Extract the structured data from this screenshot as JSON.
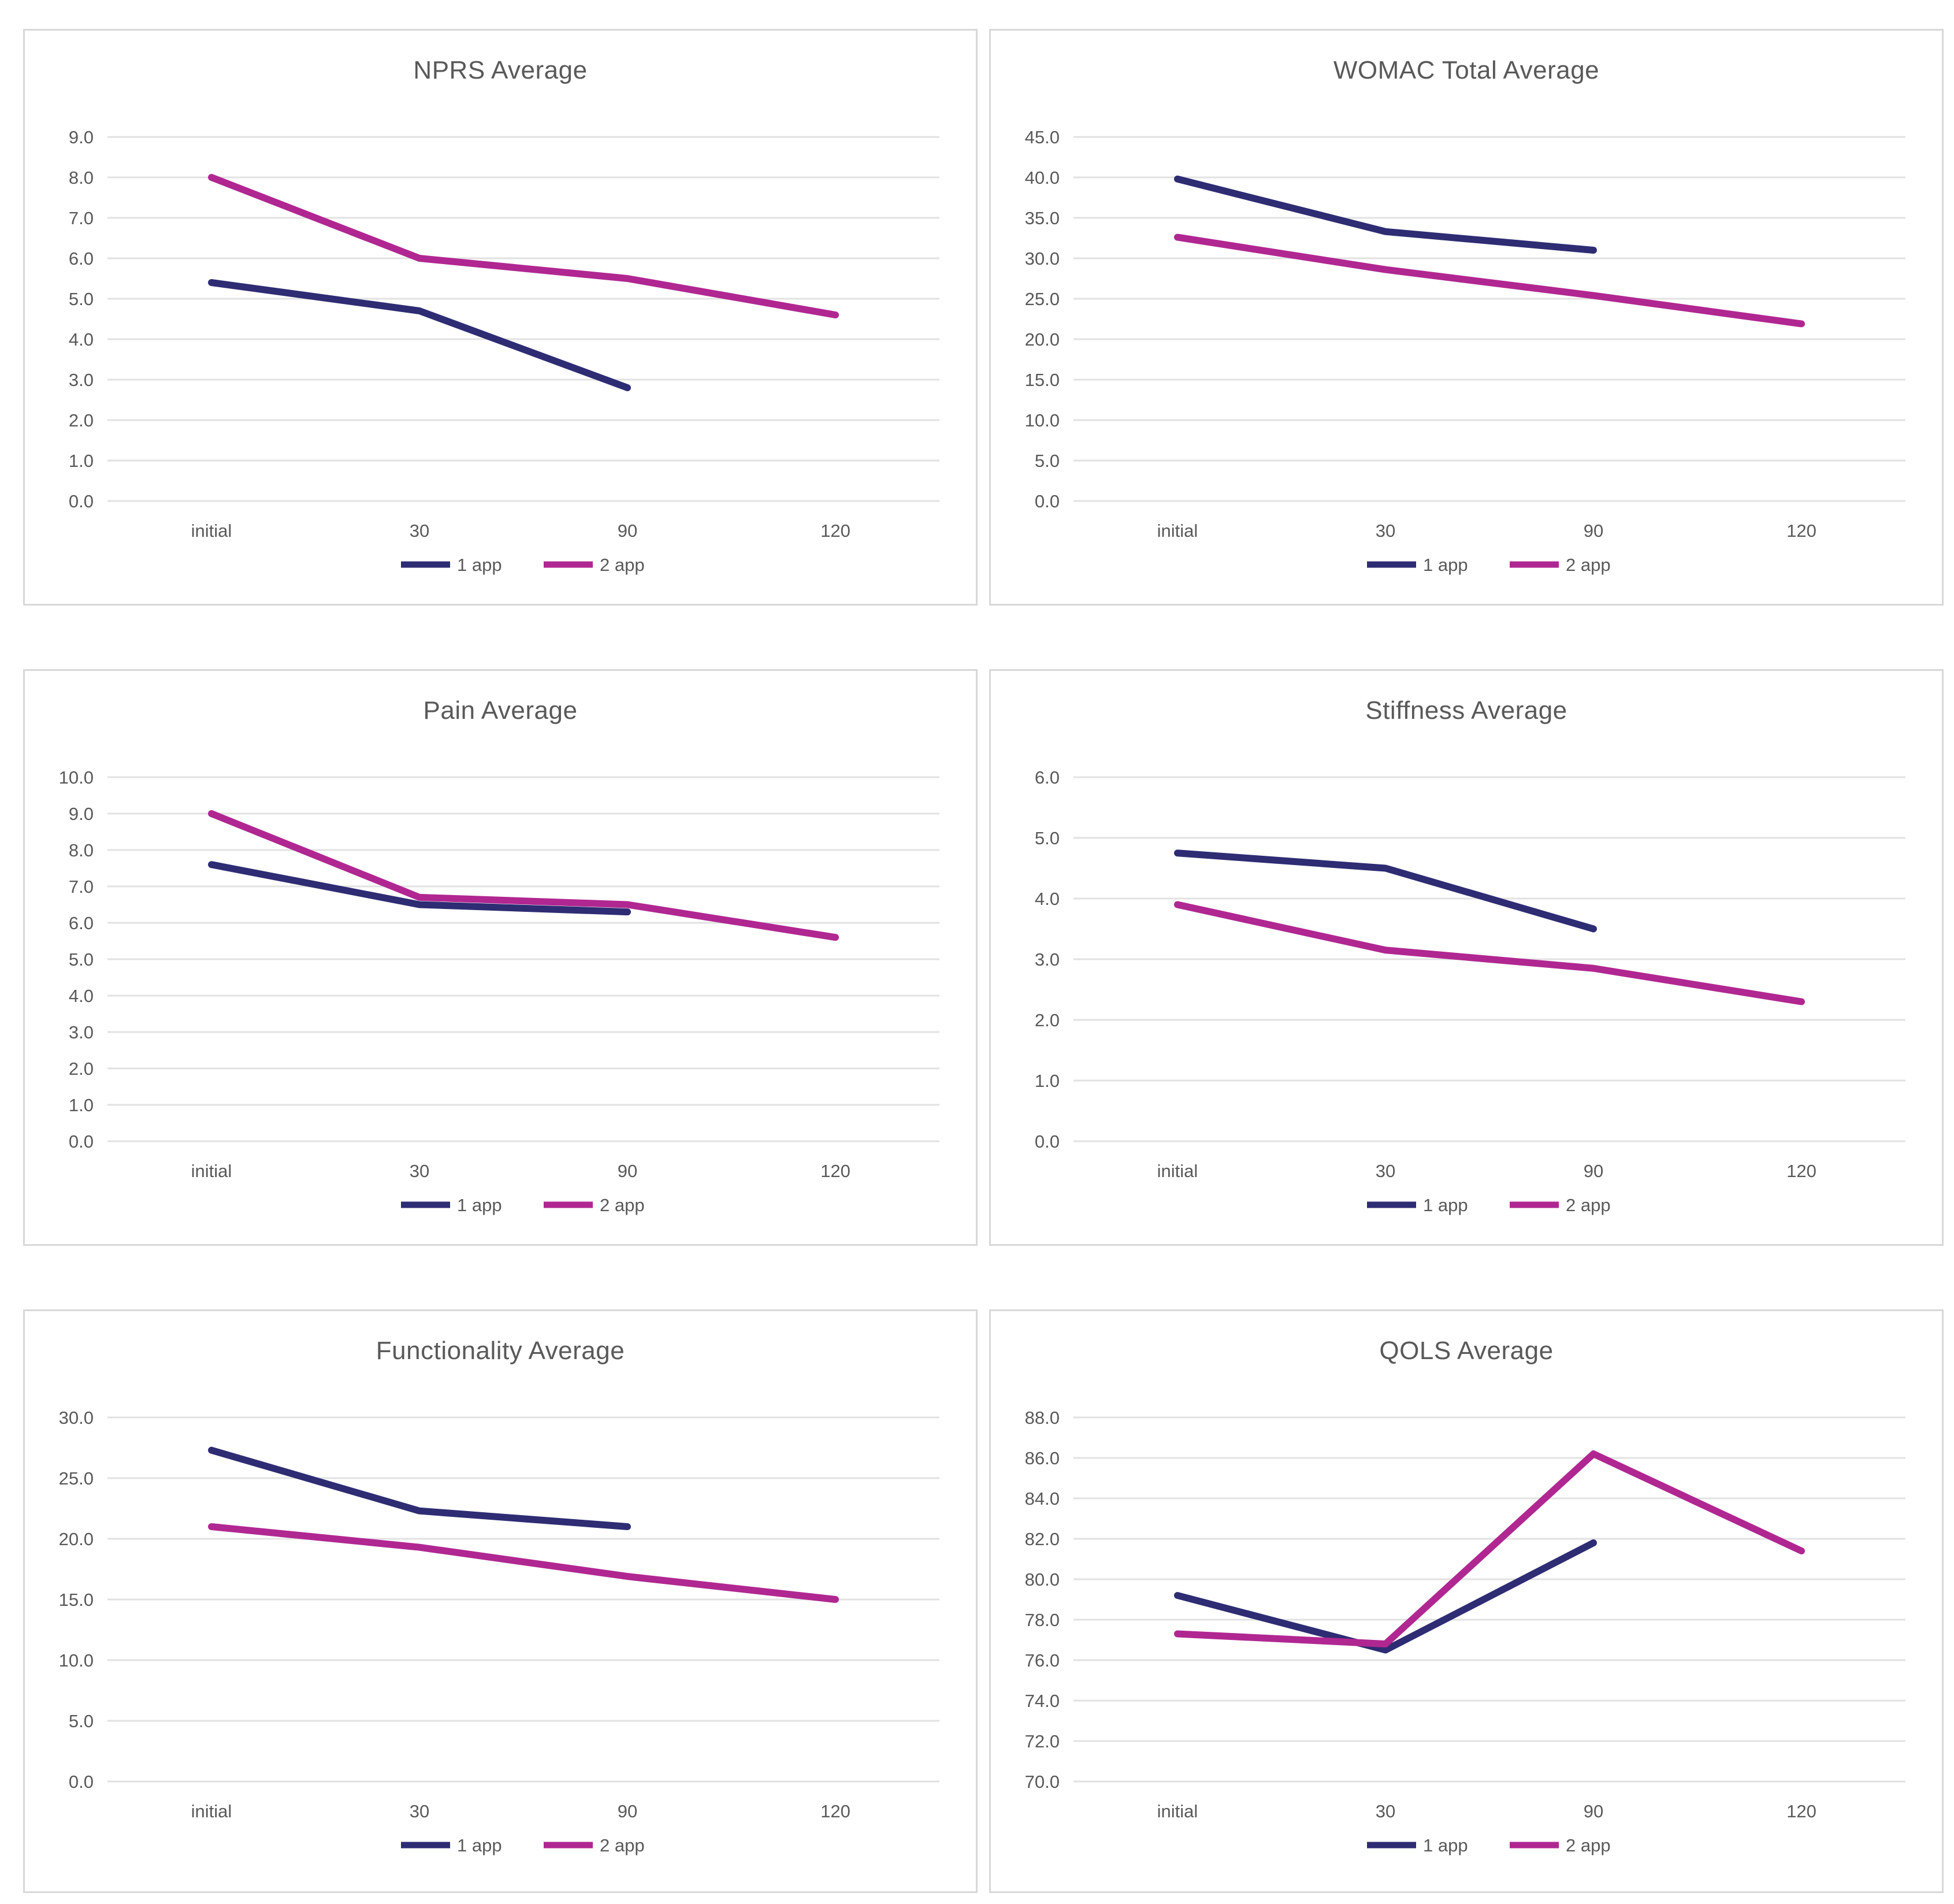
{
  "page": {
    "background": "#ffffff"
  },
  "colors": {
    "series1": "#2E2C73",
    "series2": "#B02791",
    "grid": "#E2E2E2",
    "text": "#595959",
    "panel_border": "#D8D8D8"
  },
  "chart_data": [
    {
      "type": "line",
      "title": "NPRS Average",
      "categories": [
        "initial",
        "30",
        "90",
        "120"
      ],
      "series": [
        {
          "name": "1 app",
          "color": "#2E2C73",
          "values": [
            5.4,
            4.7,
            2.8,
            null
          ]
        },
        {
          "name": "2 app",
          "color": "#B02791",
          "values": [
            8.0,
            6.0,
            5.5,
            4.6
          ]
        }
      ],
      "ylim": [
        0,
        9
      ],
      "ytick_step": 1,
      "ytick_decimals": 1,
      "grid": true,
      "legend_position": "bottom"
    },
    {
      "type": "line",
      "title": "WOMAC Total Average",
      "categories": [
        "initial",
        "30",
        "90",
        "120"
      ],
      "series": [
        {
          "name": "1 app",
          "color": "#2E2C73",
          "values": [
            39.8,
            33.3,
            31.0,
            null
          ]
        },
        {
          "name": "2 app",
          "color": "#B02791",
          "values": [
            32.6,
            28.6,
            25.4,
            21.9
          ]
        }
      ],
      "ylim": [
        0,
        45
      ],
      "ytick_step": 5,
      "ytick_decimals": 1,
      "grid": true,
      "legend_position": "bottom"
    },
    {
      "type": "line",
      "title": "Pain Average",
      "categories": [
        "initial",
        "30",
        "90",
        "120"
      ],
      "series": [
        {
          "name": "1 app",
          "color": "#2E2C73",
          "values": [
            7.6,
            6.5,
            6.3,
            null
          ]
        },
        {
          "name": "2 app",
          "color": "#B02791",
          "values": [
            9.0,
            6.7,
            6.5,
            5.6
          ]
        }
      ],
      "ylim": [
        0,
        10
      ],
      "ytick_step": 1,
      "ytick_decimals": 1,
      "grid": true,
      "legend_position": "bottom"
    },
    {
      "type": "line",
      "title": "Stiffness Average",
      "categories": [
        "initial",
        "30",
        "90",
        "120"
      ],
      "series": [
        {
          "name": "1 app",
          "color": "#2E2C73",
          "values": [
            4.75,
            4.5,
            3.5,
            null
          ]
        },
        {
          "name": "2 app",
          "color": "#B02791",
          "values": [
            3.9,
            3.15,
            2.85,
            2.3
          ]
        }
      ],
      "ylim": [
        0,
        6
      ],
      "ytick_step": 1,
      "ytick_decimals": 1,
      "grid": true,
      "legend_position": "bottom"
    },
    {
      "type": "line",
      "title": "Functionality Average",
      "categories": [
        "initial",
        "30",
        "90",
        "120"
      ],
      "series": [
        {
          "name": "1 app",
          "color": "#2E2C73",
          "values": [
            27.3,
            22.3,
            21.0,
            null
          ]
        },
        {
          "name": "2 app",
          "color": "#B02791",
          "values": [
            21.0,
            19.3,
            16.9,
            15.0
          ]
        }
      ],
      "ylim": [
        0,
        30
      ],
      "ytick_step": 5,
      "ytick_decimals": 1,
      "grid": true,
      "legend_position": "bottom"
    },
    {
      "type": "line",
      "title": "QOLS Average",
      "categories": [
        "initial",
        "30",
        "90",
        "120"
      ],
      "series": [
        {
          "name": "1 app",
          "color": "#2E2C73",
          "values": [
            79.2,
            76.5,
            81.8,
            null
          ]
        },
        {
          "name": "2 app",
          "color": "#B02791",
          "values": [
            77.3,
            76.8,
            86.2,
            81.4
          ]
        }
      ],
      "ylim": [
        70,
        88
      ],
      "ytick_step": 2,
      "ytick_decimals": 1,
      "grid": true,
      "legend_position": "bottom"
    }
  ]
}
